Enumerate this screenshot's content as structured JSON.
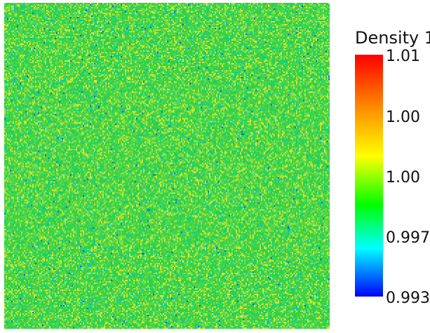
{
  "legend": {
    "title": "Density 1",
    "tick_labels": [
      "1.01",
      "1.00",
      "1.00",
      "0.997",
      "0.993"
    ],
    "gradient_colors": [
      "#ff0000",
      "#ff8c00",
      "#ffff00",
      "#00ff00",
      "#00ffff",
      "#0000ff"
    ]
  },
  "view": {
    "base_color": "#32d14a",
    "noise_colors": [
      "#32d14a",
      "#49d94a",
      "#6ed84a",
      "#9ddd3a",
      "#c5e82c",
      "#e5ea2a",
      "#11d17a",
      "#04c6a4",
      "#14b8ce",
      "#0b63e2"
    ]
  }
}
